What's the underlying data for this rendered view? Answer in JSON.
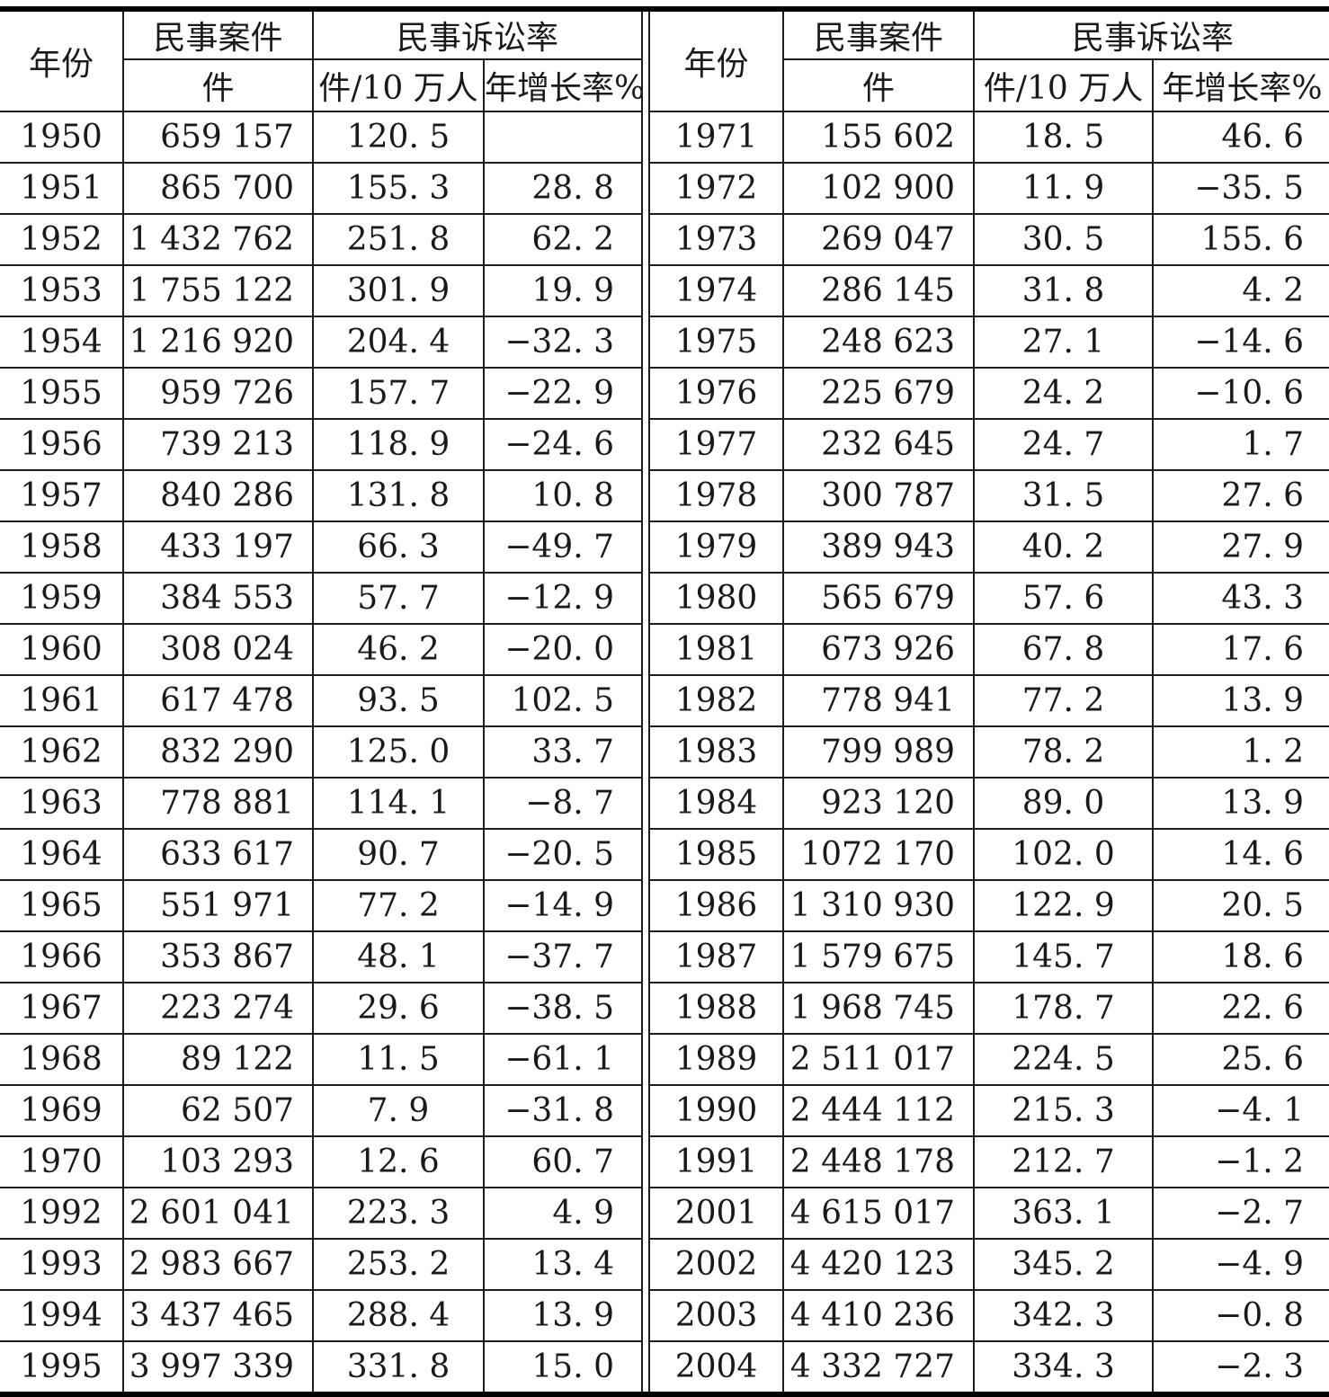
{
  "table": {
    "header": {
      "year": "年份",
      "cases_group": "民事案件",
      "rate_group": "民事诉讼率",
      "cases_unit": "件",
      "rate_per_100k": "件/10 万人",
      "growth": "年增长率%"
    },
    "left_rows": [
      {
        "year": "1950",
        "cases": "659 157",
        "rate": "120. 5",
        "growth": ""
      },
      {
        "year": "1951",
        "cases": "865 700",
        "rate": "155. 3",
        "growth": "28. 8"
      },
      {
        "year": "1952",
        "cases": "1 432 762",
        "rate": "251. 8",
        "growth": "62. 2"
      },
      {
        "year": "1953",
        "cases": "1 755 122",
        "rate": "301. 9",
        "growth": "19. 9"
      },
      {
        "year": "1954",
        "cases": "1 216 920",
        "rate": "204. 4",
        "growth": "−32. 3"
      },
      {
        "year": "1955",
        "cases": "959 726",
        "rate": "157. 7",
        "growth": "−22. 9"
      },
      {
        "year": "1956",
        "cases": "739 213",
        "rate": "118. 9",
        "growth": "−24. 6"
      },
      {
        "year": "1957",
        "cases": "840 286",
        "rate": "131. 8",
        "growth": "10. 8"
      },
      {
        "year": "1958",
        "cases": "433 197",
        "rate": "66. 3",
        "growth": "−49. 7"
      },
      {
        "year": "1959",
        "cases": "384 553",
        "rate": "57. 7",
        "growth": "−12. 9"
      },
      {
        "year": "1960",
        "cases": "308 024",
        "rate": "46. 2",
        "growth": "−20. 0"
      },
      {
        "year": "1961",
        "cases": "617 478",
        "rate": "93. 5",
        "growth": "102. 5"
      },
      {
        "year": "1962",
        "cases": "832 290",
        "rate": "125. 0",
        "growth": "33. 7"
      },
      {
        "year": "1963",
        "cases": "778 881",
        "rate": "114. 1",
        "growth": "−8. 7"
      },
      {
        "year": "1964",
        "cases": "633 617",
        "rate": "90. 7",
        "growth": "−20. 5"
      },
      {
        "year": "1965",
        "cases": "551 971",
        "rate": "77. 2",
        "growth": "−14. 9"
      },
      {
        "year": "1966",
        "cases": "353 867",
        "rate": "48. 1",
        "growth": "−37. 7"
      },
      {
        "year": "1967",
        "cases": "223 274",
        "rate": "29. 6",
        "growth": "−38. 5"
      },
      {
        "year": "1968",
        "cases": "89 122",
        "rate": "11. 5",
        "growth": "−61. 1"
      },
      {
        "year": "1969",
        "cases": "62 507",
        "rate": "7. 9",
        "growth": "−31. 8"
      },
      {
        "year": "1970",
        "cases": "103 293",
        "rate": "12. 6",
        "growth": "60. 7"
      },
      {
        "year": "1992",
        "cases": "2 601 041",
        "rate": "223. 3",
        "growth": "4. 9"
      },
      {
        "year": "1993",
        "cases": "2 983 667",
        "rate": "253. 2",
        "growth": "13. 4"
      },
      {
        "year": "1994",
        "cases": "3 437 465",
        "rate": "288. 4",
        "growth": "13. 9"
      },
      {
        "year": "1995",
        "cases": "3 997 339",
        "rate": "331. 8",
        "growth": "15. 0"
      }
    ],
    "right_rows": [
      {
        "year": "1971",
        "cases": "155 602",
        "rate": "18. 5",
        "growth": "46. 6"
      },
      {
        "year": "1972",
        "cases": "102 900",
        "rate": "11. 9",
        "growth": "−35. 5"
      },
      {
        "year": "1973",
        "cases": "269 047",
        "rate": "30. 5",
        "growth": "155. 6"
      },
      {
        "year": "1974",
        "cases": "286 145",
        "rate": "31. 8",
        "growth": "4. 2"
      },
      {
        "year": "1975",
        "cases": "248 623",
        "rate": "27. 1",
        "growth": "−14. 6"
      },
      {
        "year": "1976",
        "cases": "225 679",
        "rate": "24. 2",
        "growth": "−10. 6"
      },
      {
        "year": "1977",
        "cases": "232 645",
        "rate": "24. 7",
        "growth": "1. 7"
      },
      {
        "year": "1978",
        "cases": "300 787",
        "rate": "31. 5",
        "growth": "27. 6"
      },
      {
        "year": "1979",
        "cases": "389 943",
        "rate": "40. 2",
        "growth": "27. 9"
      },
      {
        "year": "1980",
        "cases": "565 679",
        "rate": "57. 6",
        "growth": "43. 3"
      },
      {
        "year": "1981",
        "cases": "673 926",
        "rate": "67. 8",
        "growth": "17. 6"
      },
      {
        "year": "1982",
        "cases": "778 941",
        "rate": "77. 2",
        "growth": "13. 9"
      },
      {
        "year": "1983",
        "cases": "799 989",
        "rate": "78. 2",
        "growth": "1. 2"
      },
      {
        "year": "1984",
        "cases": "923 120",
        "rate": "89. 0",
        "growth": "13. 9"
      },
      {
        "year": "1985",
        "cases": "1072 170",
        "rate": "102. 0",
        "growth": "14. 6"
      },
      {
        "year": "1986",
        "cases": "1 310 930",
        "rate": "122. 9",
        "growth": "20. 5"
      },
      {
        "year": "1987",
        "cases": "1 579 675",
        "rate": "145. 7",
        "growth": "18. 6"
      },
      {
        "year": "1988",
        "cases": "1 968 745",
        "rate": "178. 7",
        "growth": "22. 6"
      },
      {
        "year": "1989",
        "cases": "2 511 017",
        "rate": "224. 5",
        "growth": "25. 6"
      },
      {
        "year": "1990",
        "cases": "2 444 112",
        "rate": "215. 3",
        "growth": "−4. 1"
      },
      {
        "year": "1991",
        "cases": "2 448 178",
        "rate": "212. 7",
        "growth": "−1. 2"
      },
      {
        "year": "2001",
        "cases": "4 615 017",
        "rate": "363. 1",
        "growth": "−2. 7"
      },
      {
        "year": "2002",
        "cases": "4 420 123",
        "rate": "345. 2",
        "growth": "−4. 9"
      },
      {
        "year": "2003",
        "cases": "4 410 236",
        "rate": "342. 3",
        "growth": "−0. 8"
      },
      {
        "year": "2004",
        "cases": "4 332 727",
        "rate": "334. 3",
        "growth": "−2. 3"
      }
    ]
  }
}
